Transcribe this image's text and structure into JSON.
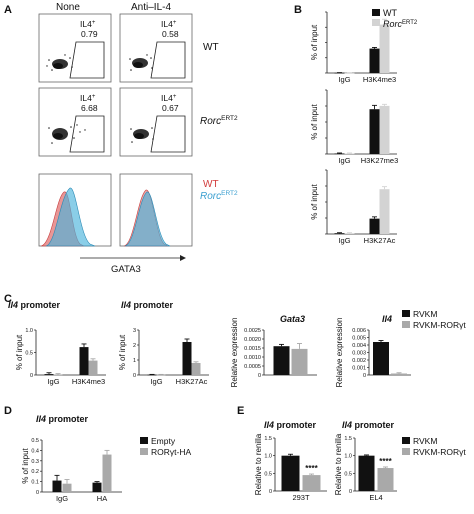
{
  "colors": {
    "black": "#111111",
    "gray": "#a9a9a9",
    "light_gray": "#d3d3d3",
    "wt_red": "#e06a6a",
    "rorc_blue": "#4bb3dc"
  },
  "panel_letters": {
    "A": "A",
    "B": "B",
    "C": "C",
    "D": "D",
    "E": "E"
  },
  "A": {
    "col_none": "None",
    "col_anti": "Anti–IL-4",
    "gate_label": "IL4",
    "gate_sup": "+",
    "values": {
      "wt_none": "0.79",
      "wt_anti": "0.58",
      "rorc_none": "6.68",
      "rorc_anti": "0.67"
    },
    "row_wt": "WT",
    "row_rorc_main": "Rorc",
    "row_rorc_sup": "ERT2",
    "legend_wt": "WT",
    "legend_rorc_main": "Rorc",
    "legend_rorc_sup": "ERT2",
    "gata3": "GATA3"
  },
  "chart_data": [
    {
      "id": "B1",
      "type": "bar",
      "panel": "B",
      "categories": [
        "IgG",
        "H3K4me3"
      ],
      "ylabel": "% of input",
      "series": [
        {
          "name": "WT",
          "values": [
            0.05,
            6.4
          ],
          "err": [
            0.05,
            0.3
          ]
        },
        {
          "name": "RorcERT2",
          "values": [
            0.05,
            12.7
          ],
          "err": [
            0.05,
            1.4
          ]
        }
      ],
      "ylim": [
        0,
        16
      ]
    },
    {
      "id": "B2",
      "type": "bar",
      "panel": "B",
      "categories": [
        "IgG",
        "H3K27me3"
      ],
      "ylabel": "% of input",
      "series": [
        {
          "name": "WT",
          "values": [
            0.02,
            1.75
          ],
          "err": [
            0.02,
            0.15
          ]
        },
        {
          "name": "RorcERT2",
          "values": [
            0.02,
            1.88
          ],
          "err": [
            0.02,
            0.06
          ]
        }
      ],
      "ylim": [
        0,
        2.5
      ]
    },
    {
      "id": "B3",
      "type": "bar",
      "panel": "B",
      "categories": [
        "IgG",
        "H3K27Ac"
      ],
      "ylabel": "% of input",
      "series": [
        {
          "name": "WT",
          "values": [
            0.03,
            0.6
          ],
          "err": [
            0.02,
            0.07
          ]
        },
        {
          "name": "RorcERT2",
          "values": [
            0.03,
            1.75
          ],
          "err": [
            0.02,
            0.1
          ]
        }
      ],
      "ylim": [
        0,
        2.5
      ]
    },
    {
      "id": "C1",
      "type": "bar",
      "panel": "C",
      "title": "Il4 promoter",
      "categories": [
        "IgG",
        "H3K4me3"
      ],
      "ylabel": "% of input",
      "series": [
        {
          "name": "RVKM",
          "values": [
            0.02,
            0.62
          ],
          "err": [
            0.03,
            0.07
          ]
        },
        {
          "name": "RVKM-RORγt",
          "values": [
            0.01,
            0.32
          ],
          "err": [
            0.02,
            0.04
          ]
        }
      ],
      "ylim": [
        0,
        1.0
      ],
      "yticks": [
        "0",
        "0.5",
        "1.0"
      ]
    },
    {
      "id": "C2",
      "type": "bar",
      "panel": "C",
      "title": "Il4 promoter",
      "categories": [
        "IgG",
        "H3K27Ac"
      ],
      "ylabel": "% of input",
      "series": [
        {
          "name": "RVKM",
          "values": [
            0.02,
            2.2
          ],
          "err": [
            0.02,
            0.2
          ]
        },
        {
          "name": "RVKM-RORγt",
          "values": [
            0.02,
            0.8
          ],
          "err": [
            0.02,
            0.08
          ]
        }
      ],
      "ylim": [
        0,
        3
      ],
      "yticks": [
        "0",
        "1",
        "2",
        "3"
      ]
    },
    {
      "id": "C3",
      "type": "bar",
      "panel": "C",
      "title": "Gata3",
      "categories": [
        ""
      ],
      "ylabel": "Relative expression",
      "series": [
        {
          "name": "RVKM",
          "values": [
            0.0016
          ],
          "err": [
            0.0001
          ]
        },
        {
          "name": "RVKM-RORγt",
          "values": [
            0.00145
          ],
          "err": [
            0.0003
          ]
        }
      ],
      "ylim": [
        0,
        0.0025
      ],
      "yticks": [
        "0",
        "0.0005",
        "0.0010",
        "0.0015",
        "0.0020",
        "0.0025"
      ]
    },
    {
      "id": "C4",
      "type": "bar",
      "panel": "C",
      "title": "Il4",
      "categories": [
        ""
      ],
      "ylabel": "Relative expression",
      "series": [
        {
          "name": "RVKM",
          "values": [
            0.0044
          ],
          "err": [
            0.0002
          ]
        },
        {
          "name": "RVKM-RORγt",
          "values": [
            0.0002
          ],
          "err": [
            0.0001
          ]
        }
      ],
      "ylim": [
        0,
        0.006
      ],
      "yticks": [
        "0",
        "0.001",
        "0.002",
        "0.003",
        "0.004",
        "0.005",
        "0.006"
      ]
    },
    {
      "id": "D1",
      "type": "bar",
      "panel": "D",
      "title": "Il4 promoter",
      "categories": [
        "IgG",
        "HA"
      ],
      "ylabel": "% of input",
      "series": [
        {
          "name": "Empty",
          "values": [
            0.11,
            0.09
          ],
          "err": [
            0.05,
            0.01
          ]
        },
        {
          "name": "RORγt-HA",
          "values": [
            0.08,
            0.36
          ],
          "err": [
            0.04,
            0.04
          ]
        }
      ],
      "ylim": [
        0,
        0.5
      ],
      "yticks": [
        "0",
        "0.1",
        "0.2",
        "0.3",
        "0.4",
        "0.5"
      ]
    },
    {
      "id": "E1",
      "type": "bar",
      "panel": "E",
      "title": "Il4 promoter",
      "categories": [
        "293T"
      ],
      "ylabel": "Relative to renilla",
      "series": [
        {
          "name": "RVKM",
          "values": [
            1.0
          ],
          "err": [
            0.04
          ]
        },
        {
          "name": "RVKM-RORγt",
          "values": [
            0.45
          ],
          "err": [
            0.03
          ]
        }
      ],
      "ylim": [
        0,
        1.5
      ],
      "yticks": [
        "0",
        "0.5",
        "1.0",
        "1.5"
      ],
      "annotation": "****"
    },
    {
      "id": "E2",
      "type": "bar",
      "panel": "E",
      "title": "Il4 promoter",
      "categories": [
        "EL4"
      ],
      "ylabel": "Relative to renilla",
      "series": [
        {
          "name": "RVKM",
          "values": [
            1.0
          ],
          "err": [
            0.02
          ]
        },
        {
          "name": "RVKM-RORγt",
          "values": [
            0.65
          ],
          "err": [
            0.03
          ]
        }
      ],
      "ylim": [
        0,
        1.5
      ],
      "yticks": [
        "0",
        "0.5",
        "1.0",
        "1.5"
      ],
      "annotation": "****"
    }
  ],
  "legends": {
    "B": [
      {
        "main": "WT",
        "sup": ""
      },
      {
        "main": "Rorc",
        "sup": "ERT2"
      }
    ],
    "C": [
      "RVKM",
      "RVKM-RORγt"
    ],
    "D": [
      "Empty",
      "RORγt-HA"
    ],
    "E": [
      "RVKM",
      "RVKM-RORγt"
    ]
  }
}
